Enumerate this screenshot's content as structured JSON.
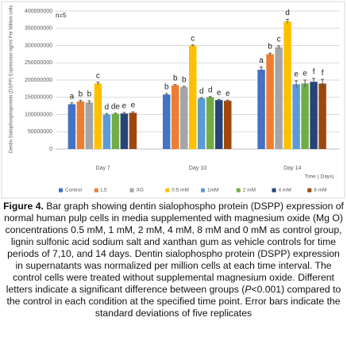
{
  "chart_data": {
    "type": "bar",
    "ylabel": "Dentin Sialophosphoprotein (DSPP) Expression  ng/ml Per Million cells",
    "xlabel": "Time ( Days)",
    "annotation": "n=5",
    "categories": [
      "Day 7",
      "Day 10",
      "Day 14"
    ],
    "ylim": [
      0,
      400000000
    ],
    "yticks": [
      0,
      50000000,
      100000000,
      150000000,
      200000000,
      250000000,
      300000000,
      350000000,
      400000000
    ],
    "grid": true,
    "legend": "bottom",
    "series": [
      {
        "name": "Control",
        "color": "#4472c4",
        "values": [
          130000000,
          158000000,
          230000000
        ],
        "errors": [
          4000000,
          3000000,
          8000000
        ],
        "labels": [
          "a",
          "b",
          "a"
        ]
      },
      {
        "name": "LS",
        "color": "#ed7d31",
        "values": [
          138000000,
          185000000,
          275000000
        ],
        "errors": [
          3000000,
          2000000,
          3000000
        ],
        "labels": [
          "b",
          "b",
          "b"
        ]
      },
      {
        "name": "XG",
        "color": "#a5a5a5",
        "values": [
          135000000,
          180000000,
          295000000
        ],
        "errors": [
          5000000,
          2000000,
          4000000
        ],
        "labels": [
          "b",
          "b",
          "c"
        ]
      },
      {
        "name": "0.5 mM",
        "color": "#ffc000",
        "values": [
          190000000,
          300000000,
          370000000
        ],
        "errors": [
          4000000,
          2000000,
          6000000
        ],
        "labels": [
          "c",
          "c",
          "d"
        ]
      },
      {
        "name": "1mM",
        "color": "#5b9bd5",
        "values": [
          100000000,
          147000000,
          188000000
        ],
        "errors": [
          3000000,
          2000000,
          10000000
        ],
        "labels": [
          "d",
          "d",
          "e"
        ]
      },
      {
        "name": "2 mM",
        "color": "#70ad47",
        "values": [
          102000000,
          150000000,
          190000000
        ],
        "errors": [
          2000000,
          2000000,
          10000000
        ],
        "labels": [
          "de",
          "d",
          "e"
        ]
      },
      {
        "name": "4 mM",
        "color": "#264478",
        "values": [
          103000000,
          142000000,
          195000000
        ],
        "errors": [
          3000000,
          2000000,
          10000000
        ],
        "labels": [
          "e",
          "e",
          "f"
        ]
      },
      {
        "name": "8 mM",
        "color": "#9e480e",
        "values": [
          105000000,
          140000000,
          190000000
        ],
        "errors": [
          3000000,
          2000000,
          12000000
        ],
        "labels": [
          "e",
          "e",
          "f"
        ]
      }
    ]
  },
  "caption": {
    "label": "Figure 4.",
    "parts": [
      "Bar graph showing dentin sialophospho protein (DSPP) expression of normal human pulp cells in media supplemented with magnesium oxide (Mg O) concentrations 0.5 mM, 1 mM, 2 mM, 4 mM, 8 mM and 0 mM as control group, lignin sulfonic acid sodium salt and xanthan gum as vehicle controls for time periods of 7,10, and 14 days. Dentin sialophospho protein (DSPP) expression in supernatants was normalized per million cells at each time interval. The control cells were treated without supplemental magnesium oxide. Different letters indicate a significant difference between groups (",
      "P",
      "<0.001) compared to the control in each condition at the specified time point. Error bars indicate the standard deviations of five replicates"
    ]
  }
}
